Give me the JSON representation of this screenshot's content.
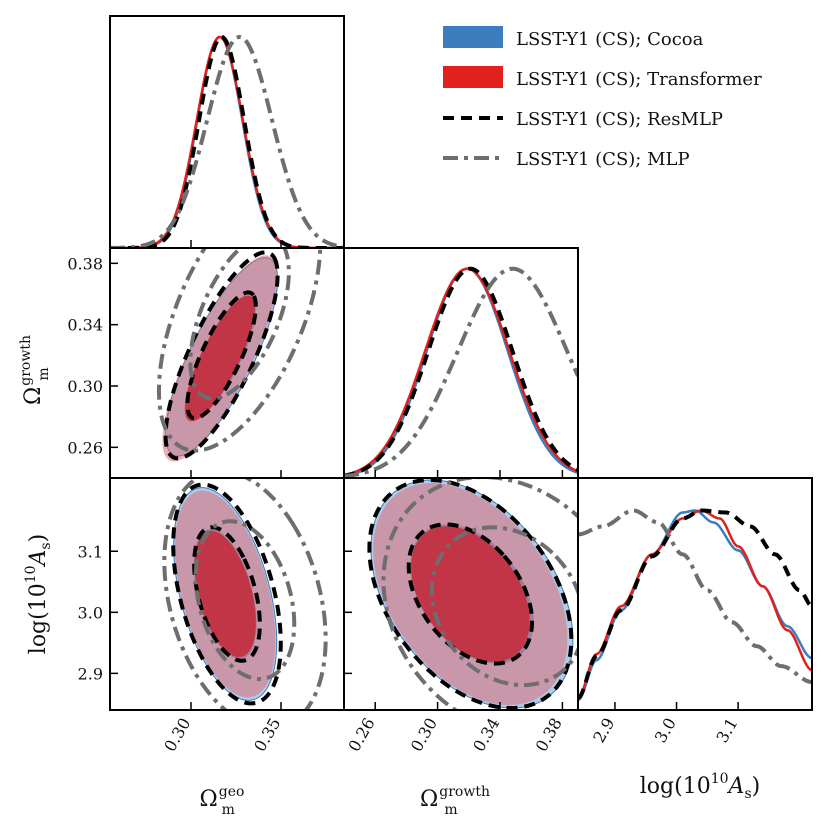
{
  "colors": {
    "cocoa": "#3b7dbf",
    "transformer": "#e2201c",
    "resmlp": "#000000",
    "mlp": "#6e6e6e"
  },
  "legend": [
    {
      "key": "cocoa",
      "label": "LSST-Y1 (CS); Cocoa"
    },
    {
      "key": "transformer",
      "label": "LSST-Y1 (CS); Transformer"
    },
    {
      "key": "resmlp",
      "label": "LSST-Y1 (CS); ResMLP"
    },
    {
      "key": "mlp",
      "label": "LSST-Y1 (CS); MLP"
    }
  ],
  "chart_data": {
    "type": "triangle-corner-plot",
    "parameters": [
      {
        "id": "om_geo",
        "label_main": "Ω",
        "label_sub": "m",
        "label_sup": "geo",
        "range": [
          0.255,
          0.385
        ],
        "ticks": [
          "0.30",
          "0.35"
        ],
        "tick_values": [
          0.3,
          0.35
        ]
      },
      {
        "id": "om_growth",
        "label_main": "Ω",
        "label_sub": "m",
        "label_sup": "growth",
        "range": [
          0.24,
          0.39
        ],
        "ticks": [
          "0.26",
          "0.30",
          "0.34",
          "0.38"
        ],
        "tick_values": [
          0.26,
          0.3,
          0.34,
          0.38
        ]
      },
      {
        "id": "logAs",
        "label_main": "log(10",
        "label_sup": "10",
        "label_tail": "A",
        "label_sub": "s",
        "label_close": ")",
        "range": [
          2.84,
          3.22
        ],
        "ticks": [
          "2.9",
          "3.0",
          "3.1"
        ],
        "tick_values": [
          2.9,
          3.0,
          3.1
        ]
      }
    ],
    "ylabels": {
      "om_growth": {
        "main": "Ω",
        "sub": "m",
        "sup": "growth"
      },
      "logAs": {
        "main": "log(10",
        "sup": "10",
        "tail": "A",
        "sub": "s",
        "close": ")"
      }
    },
    "marginals": {
      "om_geo": {
        "cocoa": {
          "mean": 0.316,
          "sigma": 0.0125
        },
        "transformer": {
          "mean": 0.316,
          "sigma": 0.0128
        },
        "resmlp": {
          "mean": 0.317,
          "sigma": 0.0125
        },
        "mlp": {
          "mean": 0.327,
          "sigma": 0.018
        }
      },
      "om_growth": {
        "cocoa": {
          "mean": 0.319,
          "sigma": 0.026
        },
        "transformer": {
          "mean": 0.319,
          "sigma": 0.027
        },
        "resmlp": {
          "mean": 0.321,
          "sigma": 0.027
        },
        "mlp": {
          "mean": 0.348,
          "sigma": 0.035
        }
      },
      "logAs": {
        "cocoa": {
          "points": [
            [
              2.84,
              0.05
            ],
            [
              2.87,
              0.25
            ],
            [
              2.91,
              0.5
            ],
            [
              2.96,
              0.78
            ],
            [
              3.01,
              0.99
            ],
            [
              3.03,
              1.0
            ],
            [
              3.06,
              0.94
            ],
            [
              3.1,
              0.8
            ],
            [
              3.14,
              0.62
            ],
            [
              3.18,
              0.42
            ],
            [
              3.22,
              0.26
            ]
          ]
        },
        "transformer": {
          "points": [
            [
              2.84,
              0.06
            ],
            [
              2.87,
              0.28
            ],
            [
              2.91,
              0.52
            ],
            [
              2.96,
              0.78
            ],
            [
              3.01,
              0.96
            ],
            [
              3.04,
              1.0
            ],
            [
              3.07,
              0.96
            ],
            [
              3.1,
              0.82
            ],
            [
              3.14,
              0.62
            ],
            [
              3.18,
              0.4
            ],
            [
              3.22,
              0.2
            ]
          ]
        },
        "resmlp": {
          "points": [
            [
              2.84,
              0.06
            ],
            [
              2.87,
              0.27
            ],
            [
              2.91,
              0.5
            ],
            [
              2.96,
              0.77
            ],
            [
              3.01,
              0.96
            ],
            [
              3.04,
              1.0
            ],
            [
              3.08,
              0.99
            ],
            [
              3.12,
              0.92
            ],
            [
              3.16,
              0.78
            ],
            [
              3.2,
              0.6
            ],
            [
              3.22,
              0.52
            ]
          ]
        },
        "mlp": {
          "points": [
            [
              2.84,
              0.88
            ],
            [
              2.88,
              0.92
            ],
            [
              2.93,
              1.0
            ],
            [
              2.97,
              0.94
            ],
            [
              3.01,
              0.78
            ],
            [
              3.05,
              0.6
            ],
            [
              3.09,
              0.44
            ],
            [
              3.13,
              0.32
            ],
            [
              3.17,
              0.22
            ],
            [
              3.22,
              0.14
            ]
          ]
        }
      }
    },
    "contours": {
      "om_geo__om_growth": {
        "cocoa": {
          "mean": [
            0.317,
            0.319
          ],
          "sd": [
            0.0125,
            0.026
          ],
          "rho": 0.78
        },
        "transformer": {
          "mean": [
            0.316,
            0.318
          ],
          "sd": [
            0.0128,
            0.027
          ],
          "rho": 0.8
        },
        "resmlp": {
          "mean": [
            0.317,
            0.32
          ],
          "sd": [
            0.0125,
            0.027
          ],
          "rho": 0.78
        },
        "mlp": {
          "mean": [
            0.327,
            0.345
          ],
          "sd": [
            0.018,
            0.035
          ],
          "rho": 0.55
        }
      },
      "om_geo__logAs": {
        "cocoa": {
          "mean": [
            0.319,
            3.03
          ],
          "sd": [
            0.0115,
            0.07
          ],
          "rho": -0.45
        },
        "transformer": {
          "mean": [
            0.319,
            3.03
          ],
          "sd": [
            0.0112,
            0.068
          ],
          "rho": -0.45
        },
        "resmlp": {
          "mean": [
            0.32,
            3.03
          ],
          "sd": [
            0.012,
            0.072
          ],
          "rho": -0.45
        },
        "mlp": {
          "mean": [
            0.33,
            3.02
          ],
          "sd": [
            0.018,
            0.085
          ],
          "rho": -0.3
        }
      },
      "om_growth__logAs": {
        "cocoa": {
          "mean": [
            0.322,
            3.03
          ],
          "sd": [
            0.026,
            0.075
          ],
          "rho": -0.4
        },
        "transformer": {
          "mean": [
            0.321,
            3.03
          ],
          "sd": [
            0.025,
            0.073
          ],
          "rho": -0.4
        },
        "resmlp": {
          "mean": [
            0.321,
            3.03
          ],
          "sd": [
            0.026,
            0.075
          ],
          "rho": -0.4
        },
        "mlp": {
          "mean": [
            0.345,
            3.01
          ],
          "sd": [
            0.032,
            0.085
          ],
          "rho": -0.2
        }
      }
    }
  }
}
